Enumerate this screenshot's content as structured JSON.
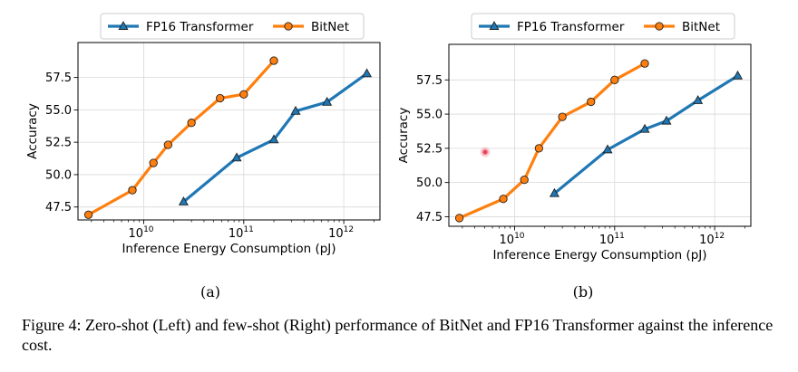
{
  "chart_data": [
    {
      "type": "line",
      "xscale": "log",
      "xlabel": "Inference Energy Consumption (pJ)",
      "ylabel": "Accuracy",
      "xlim": [
        2200000000.0,
        2300000000000.0
      ],
      "ylim": [
        46.5,
        60.2
      ],
      "x_ticks": [
        {
          "value": 10000000000.0,
          "base": "10",
          "exp": "10"
        },
        {
          "value": 100000000000.0,
          "base": "10",
          "exp": "11"
        },
        {
          "value": 1000000000000.0,
          "base": "10",
          "exp": "12"
        }
      ],
      "y_ticks": [
        {
          "value": 47.5,
          "label": "47.5"
        },
        {
          "value": 50.0,
          "label": "50.0"
        },
        {
          "value": 52.5,
          "label": "52.5"
        },
        {
          "value": 55.0,
          "label": "55.0"
        },
        {
          "value": 57.5,
          "label": "57.5"
        }
      ],
      "grid": true,
      "legend_position": "top",
      "series": [
        {
          "name": "FP16 Transformer",
          "color": "#1f77b4",
          "marker": "triangle",
          "x": [
            25000000000.0,
            85000000000.0,
            200000000000.0,
            330000000000.0,
            680000000000.0,
            1700000000000.0
          ],
          "y": [
            47.9,
            51.3,
            52.7,
            54.9,
            55.6,
            57.8
          ]
        },
        {
          "name": "BitNet",
          "color": "#ff7f0e",
          "marker": "circle",
          "x": [
            2800000000.0,
            7700000000.0,
            12500000000.0,
            17500000000.0,
            30000000000.0,
            58000000000.0,
            100000000000.0,
            200000000000.0
          ],
          "y": [
            46.9,
            48.8,
            50.9,
            52.3,
            54.0,
            55.9,
            56.2,
            58.8
          ]
        }
      ]
    },
    {
      "type": "line",
      "xscale": "log",
      "xlabel": "Inference Energy Consumption (pJ)",
      "ylabel": "Accuracy",
      "xlim": [
        2200000000.0,
        2300000000000.0
      ],
      "ylim": [
        46.8,
        60.1
      ],
      "x_ticks": [
        {
          "value": 10000000000.0,
          "base": "10",
          "exp": "10"
        },
        {
          "value": 100000000000.0,
          "base": "10",
          "exp": "11"
        },
        {
          "value": 1000000000000.0,
          "base": "10",
          "exp": "12"
        }
      ],
      "y_ticks": [
        {
          "value": 47.5,
          "label": "47.5"
        },
        {
          "value": 50.0,
          "label": "50.0"
        },
        {
          "value": 52.5,
          "label": "52.5"
        },
        {
          "value": 55.0,
          "label": "55.0"
        },
        {
          "value": 57.5,
          "label": "57.5"
        }
      ],
      "grid": true,
      "legend_position": "top",
      "series": [
        {
          "name": "FP16 Transformer",
          "color": "#1f77b4",
          "marker": "triangle",
          "x": [
            25000000000.0,
            85000000000.0,
            200000000000.0,
            330000000000.0,
            680000000000.0,
            1700000000000.0
          ],
          "y": [
            49.2,
            52.4,
            53.9,
            54.5,
            56.0,
            57.8
          ]
        },
        {
          "name": "BitNet",
          "color": "#ff7f0e",
          "marker": "circle",
          "x": [
            2800000000.0,
            7700000000.0,
            12500000000.0,
            17500000000.0,
            30000000000.0,
            58000000000.0,
            100000000000.0,
            200000000000.0
          ],
          "y": [
            47.4,
            48.8,
            50.2,
            52.5,
            54.8,
            55.9,
            57.5,
            58.7
          ]
        }
      ]
    }
  ],
  "subfigures": [
    "(a)",
    "(b)"
  ],
  "caption": "Figure 4: Zero-shot (Left) and few-shot (Right) performance of BitNet and FP16 Transformer against the inference cost."
}
